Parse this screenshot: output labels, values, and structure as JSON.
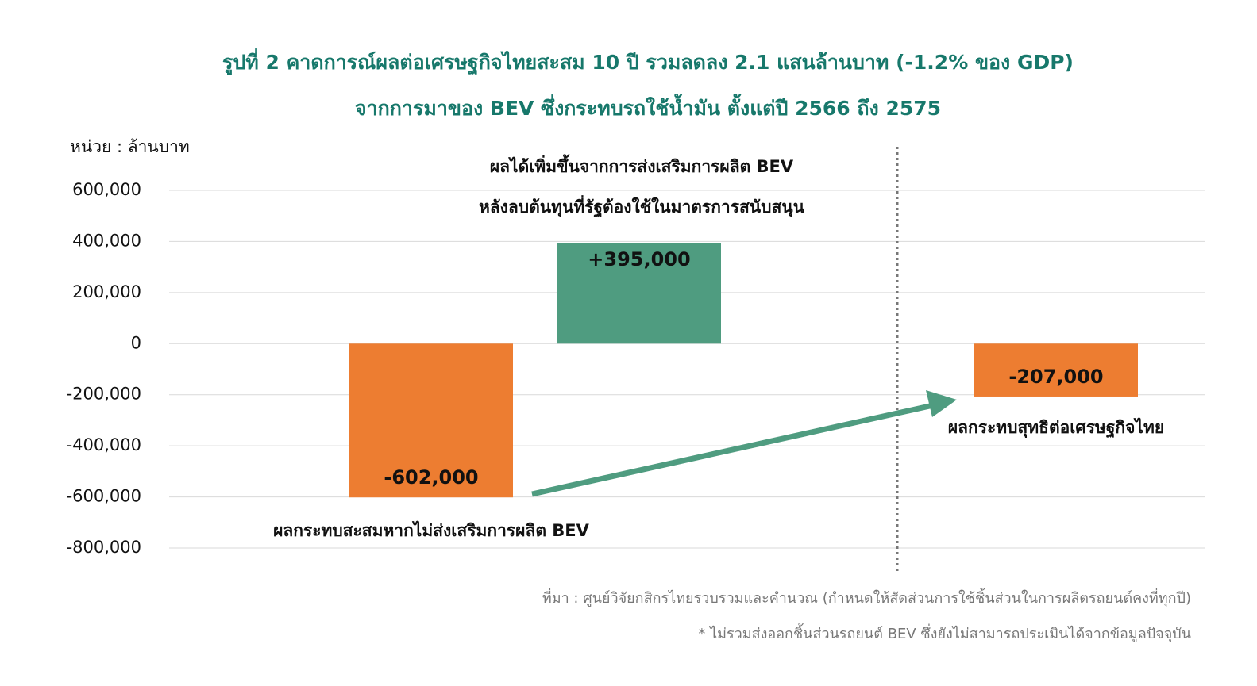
{
  "chart_data": {
    "type": "bar",
    "title": "รูปที่ 2 คาดการณ์ผลต่อเศรษฐกิจไทยสะสม 10 ปี รวมลดลง 2.1 แสนล้านบาท (-1.2% ของ GDP)",
    "subtitle": "จากการมาของ BEV ซึ่งกระทบรถใช้น้ำมัน ตั้งแต่ปี 2566 ถึง 2575",
    "y_label": "หน่วย : ล้านบาท",
    "categories": [
      null,
      null,
      null
    ],
    "values": [
      -602000,
      395000,
      -207000
    ],
    "value_labels": [
      "-602,000",
      "+395,000",
      "-207,000"
    ],
    "colors": [
      "#ed7d31",
      "#4f9c80",
      "#ed7d31"
    ],
    "annotations": [
      "ผลกระทบสะสมหากไม่ส่งเสริมการผลิต BEV",
      "ผลได้เพิ่มขึ้นจากการส่งเสริมการผลิต BEV",
      "หลังลบต้นทุนที่รัฐต้องใช้ในมาตรการสนับสนุน",
      "ผลกระทบสุทธิต่อเศรษฐกิจไทย"
    ],
    "ylim": [
      -800000,
      600000
    ],
    "yticks": [
      {
        "value": -800000,
        "label": "-800,000"
      },
      {
        "value": -600000,
        "label": "-600,000"
      },
      {
        "value": -400000,
        "label": "-400,000"
      },
      {
        "value": -200000,
        "label": "-200,000"
      },
      0,
      {
        "value": 200000,
        "label": "200,000"
      },
      {
        "value": 400000,
        "label": "400,000"
      },
      {
        "value": 600000,
        "label": "600,000"
      }
    ],
    "grid": true,
    "notes": [
      "ที่มา : ศูนย์วิจัยกสิกรไทยรวบรวมและคำนวณ (กำหนดให้สัดส่วนการใช้ชิ้นส่วนในการผลิตรถยนต์คงที่ทุกปี)",
      "* ไม่รวมส่งออกชิ้นส่วนรถยนต์ BEV ซึ่งยังไม่สามารถประเมินได้จากข้อมูลปัจจุบัน"
    ]
  }
}
